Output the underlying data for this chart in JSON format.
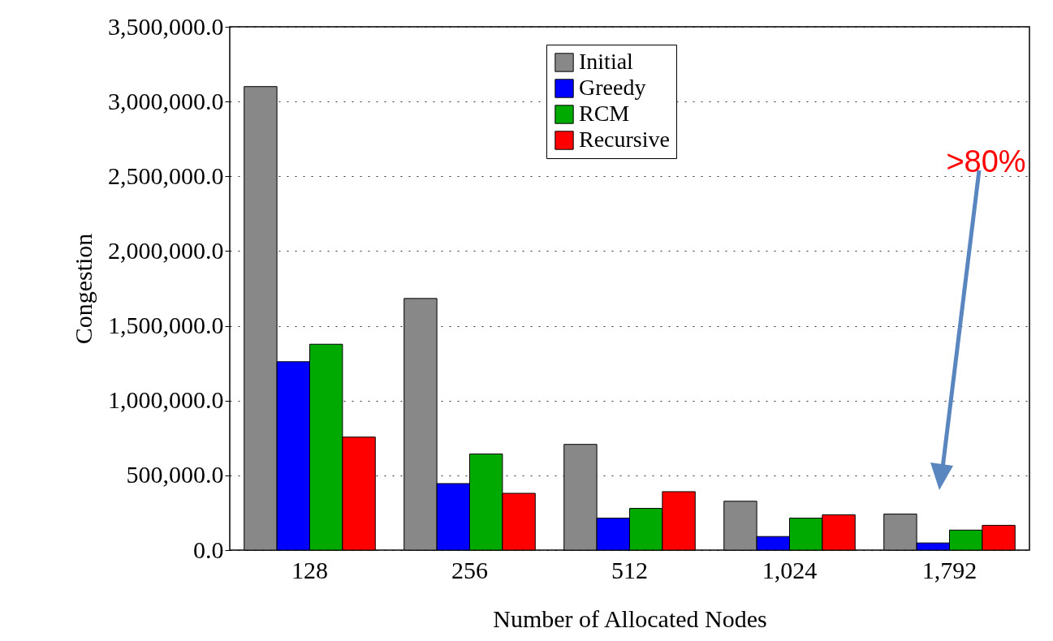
{
  "chart_data": {
    "type": "bar",
    "xlabel": "Number of Allocated Nodes",
    "ylabel": "Congestion",
    "categories": [
      "128",
      "256",
      "512",
      "1,024",
      "1,792"
    ],
    "series": [
      {
        "name": "Initial",
        "color": "#888888",
        "values": [
          3100000,
          1683000,
          707000,
          327000,
          241000
        ]
      },
      {
        "name": "Greedy",
        "color": "#0000ff",
        "values": [
          1260000,
          445000,
          214000,
          91000,
          48000
        ]
      },
      {
        "name": "RCM",
        "color": "#00aa00",
        "values": [
          1377000,
          643000,
          279000,
          214000,
          134000
        ]
      },
      {
        "name": "Recursive",
        "color": "#ff0000",
        "values": [
          756000,
          380000,
          391000,
          236000,
          166000
        ]
      }
    ],
    "ylim": [
      0,
      3500000
    ],
    "yticks": [
      {
        "value": 0,
        "label": "0.0"
      },
      {
        "value": 500000,
        "label": "500,000.0"
      },
      {
        "value": 1000000,
        "label": "1,000,000.0"
      },
      {
        "value": 1500000,
        "label": "1,500,000.0"
      },
      {
        "value": 2000000,
        "label": "2,000,000.0"
      },
      {
        "value": 2500000,
        "label": "2,500,000.0"
      },
      {
        "value": 3000000,
        "label": "3,000,000.0"
      },
      {
        "value": 3500000,
        "label": "3,500,000.0"
      }
    ],
    "grid": "y",
    "legend": "top",
    "annotations": [
      ">80%"
    ]
  }
}
